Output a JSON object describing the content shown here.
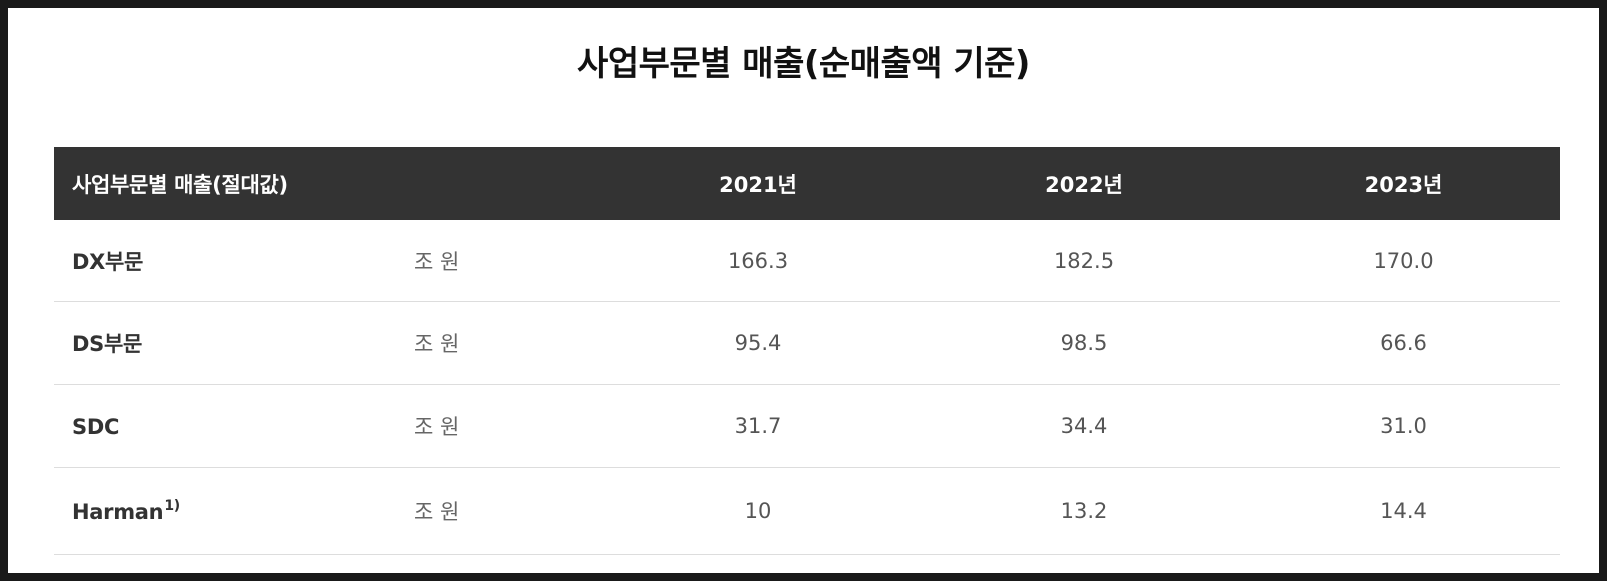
{
  "title": "사업부문별 매출(순매출액 기준)",
  "table": {
    "header": {
      "label": "사업부문별 매출(절대값)",
      "years": [
        "2021년",
        "2022년",
        "2023년"
      ]
    },
    "rows": [
      {
        "label": "DX부문",
        "sup": "",
        "unit": "조 원",
        "values": [
          "166.3",
          "182.5",
          "170.0"
        ]
      },
      {
        "label": "DS부문",
        "sup": "",
        "unit": "조 원",
        "values": [
          "95.4",
          "98.5",
          "66.6"
        ]
      },
      {
        "label": "SDC",
        "sup": "",
        "unit": "조 원",
        "values": [
          "31.7",
          "34.4",
          "31.0"
        ]
      },
      {
        "label": "Harman",
        "sup": "1)",
        "unit": "조 원",
        "values": [
          "10",
          "13.2",
          "14.4"
        ]
      }
    ]
  }
}
